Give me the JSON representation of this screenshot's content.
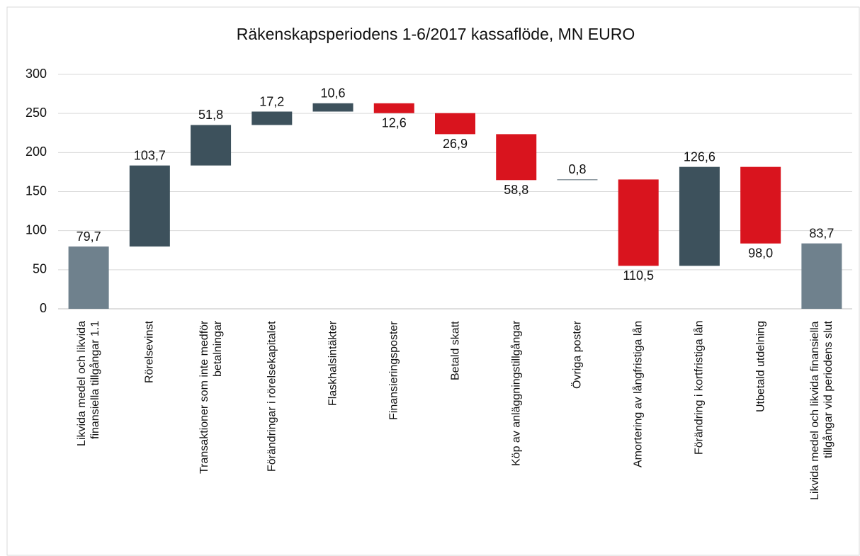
{
  "chart_data": {
    "type": "waterfall",
    "title": "Räkenskapsperiodens 1-6/2017 kassaflöde, MN EURO",
    "categories": [
      "Likvida medel och likvida\nfinansiella tillgångar 1.1",
      "Rörelsevinst",
      "Transaktioner som inte medför\nbetalningar",
      "Förändringar i rörelsekapitalet",
      "Flaskhalsintäkter",
      "Finansieringsposter",
      "Betald skatt",
      "Köp av anläggningstillgångar",
      "Övriga poster",
      "Amortering av långfristiga lån",
      "Förändring i kortfristiga lån",
      "Utbetald utdelning",
      "Likvida medel och likvida finansiella\ntillgångar vid periodens slut"
    ],
    "measure": [
      "absolute",
      "relative",
      "relative",
      "relative",
      "relative",
      "relative",
      "relative",
      "relative",
      "relative",
      "relative",
      "relative",
      "relative",
      "total"
    ],
    "values": [
      79.7,
      103.7,
      51.8,
      17.2,
      10.6,
      -12.6,
      -26.9,
      -58.8,
      0.8,
      -110.5,
      126.6,
      -98.0,
      83.7
    ],
    "value_labels": [
      "79,7",
      "103,7",
      "51,8",
      "17,2",
      "10,6",
      "12,6",
      "26,9",
      "58,8",
      "0,8",
      "110,5",
      "126,6",
      "98,0",
      "83,7"
    ],
    "colors": [
      "#6f818d",
      "#3d515c",
      "#3d515c",
      "#3d515c",
      "#3d515c",
      "#d9141e",
      "#d9141e",
      "#d9141e",
      "#3d515c",
      "#d9141e",
      "#3d515c",
      "#d9141e",
      "#6f818d"
    ],
    "ylim": [
      0,
      300
    ],
    "yticks": [
      0,
      50,
      100,
      150,
      200,
      250,
      300
    ],
    "grid": true
  }
}
